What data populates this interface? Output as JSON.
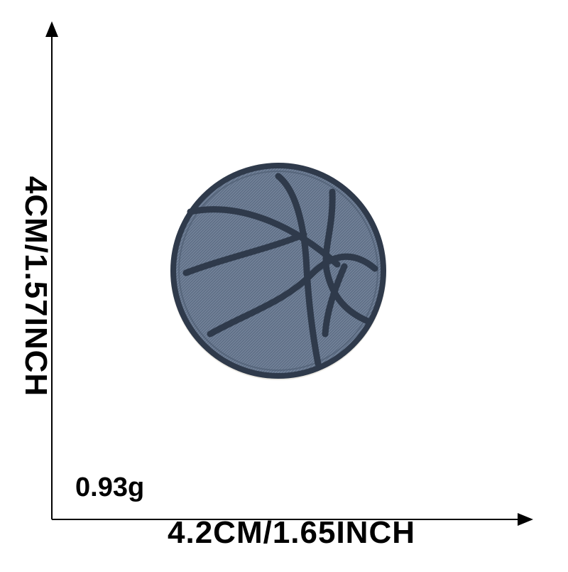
{
  "dimensions": {
    "width_label": "4.2CM/1.65INCH",
    "height_label": "4CM/1.57INCH"
  },
  "weight_label": "0.93g",
  "product": {
    "subject": "basketball embroidered denim patch",
    "colors": {
      "denim": "#5f6f86",
      "stitching": "#2f3a4b",
      "background": "#ffffff"
    }
  }
}
